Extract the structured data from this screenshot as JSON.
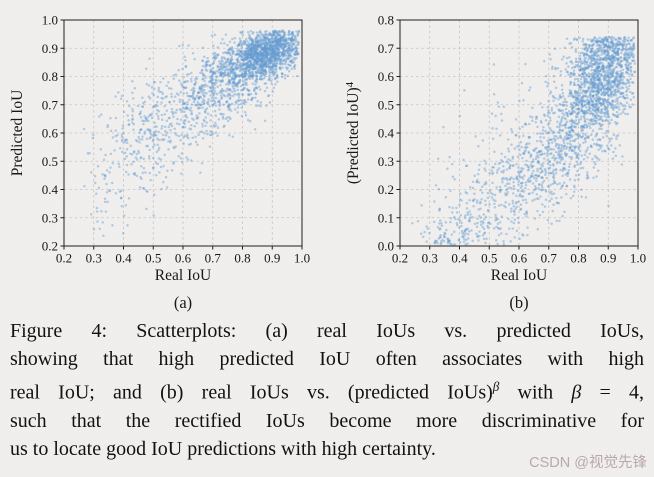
{
  "page": {
    "background": "#f1f0ee"
  },
  "figure": {
    "caption_text": "Figure 4: Scatterplots: (a) real IoUs vs. predicted IoUs, showing that high predicted IoU often associates with high real IoU; and (b) real IoUs vs. (predicted IoUs)β with β = 4, such that the rectified IoUs become more discriminative for us to locate good IoU predictions with high certainty.",
    "caption_lines": [
      {
        "justify": true,
        "segments": [
          {
            "text": "Figure 4: Scatterplots: (a) real IoUs vs. predicted IoUs,"
          }
        ]
      },
      {
        "justify": true,
        "segments": [
          {
            "text": "showing that high predicted IoU often associates with high"
          }
        ]
      },
      {
        "justify": true,
        "segments": [
          {
            "text": "real IoU; and (b) real IoUs vs. (predicted IoUs)"
          },
          {
            "text": "β",
            "sup": true,
            "italic": true
          },
          {
            "text": " with "
          },
          {
            "text": "β",
            "italic": true
          },
          {
            "text": " = 4,"
          }
        ]
      },
      {
        "justify": true,
        "segments": [
          {
            "text": "such that the rectified IoUs become more discriminative for"
          }
        ]
      },
      {
        "justify": false,
        "segments": [
          {
            "text": "us to locate good IoU predictions with high certainty."
          }
        ]
      }
    ],
    "watermark": "CSDN @视觉先锋"
  },
  "chart_data": [
    {
      "type": "scatter",
      "panel_label": "(a)",
      "xlabel": "Real IoU",
      "ylabel_segments": [
        {
          "text": "Predicted IoU"
        }
      ],
      "xlim": [
        0.2,
        1.0
      ],
      "ylim": [
        0.2,
        1.0
      ],
      "xticks": [
        0.2,
        0.3,
        0.4,
        0.5,
        0.6,
        0.7,
        0.8,
        0.9,
        1.0
      ],
      "yticks": [
        0.2,
        0.3,
        0.4,
        0.5,
        0.6,
        0.7,
        0.8,
        0.9,
        1.0
      ],
      "grid": true,
      "legend": "none",
      "point_color": "#639bd2",
      "point_opacity": 0.45,
      "point_radius": 1.25,
      "seed": 1337,
      "y_transform": "none",
      "x_clamp": [
        0.235,
        0.99
      ],
      "y_clamp": [
        0.225,
        0.962
      ],
      "clusters": [
        {
          "n": 1100,
          "cx": 0.885,
          "cy": 0.885,
          "sx": 0.055,
          "sy": 0.04,
          "corr": 0.35
        },
        {
          "n": 550,
          "cx": 0.8,
          "cy": 0.825,
          "sx": 0.075,
          "sy": 0.06,
          "corr": 0.35
        },
        {
          "n": 380,
          "cx": 0.68,
          "cy": 0.74,
          "sx": 0.1,
          "sy": 0.075,
          "corr": 0.3
        },
        {
          "n": 220,
          "cx": 0.55,
          "cy": 0.645,
          "sx": 0.1,
          "sy": 0.095,
          "corr": 0.25
        },
        {
          "n": 110,
          "cx": 0.44,
          "cy": 0.54,
          "sx": 0.075,
          "sy": 0.11,
          "corr": 0.2
        },
        {
          "n": 40,
          "cx": 0.36,
          "cy": 0.4,
          "sx": 0.05,
          "sy": 0.09,
          "corr": 0.1
        }
      ]
    },
    {
      "type": "scatter",
      "panel_label": "(b)",
      "xlabel": "Real IoU",
      "ylabel_segments": [
        {
          "text": "(Predicted IoU)"
        },
        {
          "text": "4",
          "sup": true
        }
      ],
      "xlim": [
        0.2,
        1.0
      ],
      "ylim": [
        0.0,
        0.8
      ],
      "xticks": [
        0.2,
        0.3,
        0.4,
        0.5,
        0.6,
        0.7,
        0.8,
        0.9,
        1.0
      ],
      "yticks": [
        0.0,
        0.1,
        0.2,
        0.3,
        0.4,
        0.5,
        0.6,
        0.7,
        0.8
      ],
      "grid": true,
      "legend": "none",
      "point_color": "#639bd2",
      "point_opacity": 0.45,
      "point_radius": 1.25,
      "seed": 777,
      "y_transform": "pow4",
      "x_clamp": [
        0.235,
        0.99
      ],
      "y_clamp": [
        0.005,
        0.74
      ],
      "clusters": [
        {
          "n": 1100,
          "cx": 0.885,
          "cy": 0.885,
          "sx": 0.055,
          "sy": 0.04,
          "corr": 0.35
        },
        {
          "n": 550,
          "cx": 0.8,
          "cy": 0.825,
          "sx": 0.075,
          "sy": 0.06,
          "corr": 0.35
        },
        {
          "n": 380,
          "cx": 0.68,
          "cy": 0.74,
          "sx": 0.1,
          "sy": 0.075,
          "corr": 0.3
        },
        {
          "n": 220,
          "cx": 0.55,
          "cy": 0.645,
          "sx": 0.1,
          "sy": 0.095,
          "corr": 0.25
        },
        {
          "n": 110,
          "cx": 0.44,
          "cy": 0.54,
          "sx": 0.075,
          "sy": 0.11,
          "corr": 0.2
        },
        {
          "n": 40,
          "cx": 0.36,
          "cy": 0.4,
          "sx": 0.05,
          "sy": 0.09,
          "corr": 0.1
        }
      ]
    }
  ]
}
